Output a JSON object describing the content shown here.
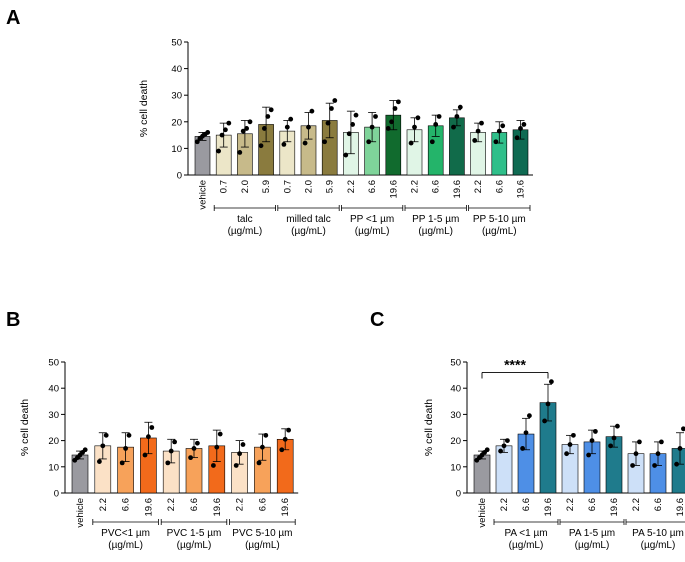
{
  "figure": {
    "panels": [
      "A",
      "B",
      "C"
    ]
  },
  "chart_data": [
    {
      "panel": "A",
      "type": "bar",
      "ylabel": "% cell death",
      "ylim": [
        0,
        50
      ],
      "yticks": [
        0,
        10,
        20,
        30,
        40,
        50
      ],
      "bars": [
        {
          "label": "vehicle",
          "value": 14.5,
          "sd": 1.5,
          "color": "#9a9aa0",
          "points": [
            12.5,
            13.8,
            14.6,
            15.3,
            16.0
          ]
        },
        {
          "label": "0.7",
          "value": 15.0,
          "sd": 4.5,
          "color": "#ece6c8",
          "points": [
            9.0,
            15.0,
            17.0,
            19.5
          ]
        },
        {
          "label": "2.0",
          "value": 15.5,
          "sd": 5.0,
          "color": "#c7ba8a",
          "points": [
            8.5,
            16.5,
            17.5,
            20.0
          ]
        },
        {
          "label": "5.9",
          "value": 19.0,
          "sd": 6.5,
          "color": "#8a7b3e",
          "points": [
            11.0,
            17.5,
            22.0,
            24.5
          ]
        },
        {
          "label": "0.7",
          "value": 16.5,
          "sd": 4.0,
          "color": "#ece6c8",
          "points": [
            11.5,
            18.0,
            21.0
          ]
        },
        {
          "label": "2.0",
          "value": 18.5,
          "sd": 5.0,
          "color": "#c7ba8a",
          "points": [
            12.0,
            18.0,
            24.0
          ]
        },
        {
          "label": "5.9",
          "value": 20.5,
          "sd": 6.5,
          "color": "#8a7b3e",
          "points": [
            12.5,
            19.5,
            25.0,
            28.0
          ]
        },
        {
          "label": "2.2",
          "value": 16.0,
          "sd": 8.0,
          "color": "#e0f5e6",
          "points": [
            7.5,
            15.5,
            19.0,
            22.5
          ]
        },
        {
          "label": "6.6",
          "value": 18.0,
          "sd": 5.5,
          "color": "#7fd49a",
          "points": [
            12.5,
            18.0,
            22.0
          ]
        },
        {
          "label": "19.6",
          "value": 22.5,
          "sd": 5.5,
          "color": "#116b2e",
          "points": [
            17.5,
            20.0,
            25.0,
            27.5
          ]
        },
        {
          "label": "2.2",
          "value": 17.0,
          "sd": 4.5,
          "color": "#e0f5e6",
          "points": [
            12.0,
            18.0,
            21.5
          ]
        },
        {
          "label": "6.6",
          "value": 18.5,
          "sd": 4.0,
          "color": "#24b46a",
          "points": [
            12.5,
            19.0,
            22.0
          ]
        },
        {
          "label": "19.6",
          "value": 21.5,
          "sd": 3.0,
          "color": "#116b4a",
          "points": [
            18.0,
            22.0,
            25.5
          ]
        },
        {
          "label": "2.2",
          "value": 16.0,
          "sd": 3.5,
          "color": "#e0f5e6",
          "points": [
            13.0,
            16.5,
            19.5
          ]
        },
        {
          "label": "6.6",
          "value": 16.0,
          "sd": 4.0,
          "color": "#2fbf8a",
          "points": [
            12.5,
            16.5,
            18.5
          ]
        },
        {
          "label": "19.6",
          "value": 17.0,
          "sd": 3.5,
          "color": "#0f6a52",
          "points": [
            14.0,
            17.5,
            19.0
          ]
        }
      ],
      "groups": [
        {
          "from": 1,
          "to": 3,
          "lines": [
            "talc",
            "(µg/mL)"
          ]
        },
        {
          "from": 4,
          "to": 6,
          "lines": [
            "milled talc",
            "(µg/mL)"
          ]
        },
        {
          "from": 7,
          "to": 9,
          "lines": [
            "PP <1 µm",
            "(µg/mL)"
          ]
        },
        {
          "from": 10,
          "to": 12,
          "lines": [
            "PP 1-5 µm",
            "(µg/mL)"
          ]
        },
        {
          "from": 13,
          "to": 15,
          "lines": [
            "PP 5-10 µm",
            "(µg/mL)"
          ]
        }
      ]
    },
    {
      "panel": "B",
      "type": "bar",
      "ylabel": "% cell death",
      "ylim": [
        0,
        50
      ],
      "yticks": [
        0,
        10,
        20,
        30,
        40,
        50
      ],
      "bars": [
        {
          "label": "vehicle",
          "value": 14.5,
          "sd": 1.5,
          "color": "#9a9aa0",
          "points": [
            12.5,
            13.5,
            14.5,
            15.5,
            16.5
          ]
        },
        {
          "label": "2.2",
          "value": 18.0,
          "sd": 5.0,
          "color": "#fbe1c6",
          "points": [
            12.0,
            18.0,
            22.0
          ]
        },
        {
          "label": "6.6",
          "value": 17.5,
          "sd": 5.5,
          "color": "#f7a25a",
          "points": [
            11.5,
            17.0,
            22.0
          ]
        },
        {
          "label": "19.6",
          "value": 21.0,
          "sd": 6.0,
          "color": "#f26a1b",
          "points": [
            14.5,
            21.5,
            25.0
          ]
        },
        {
          "label": "2.2",
          "value": 16.0,
          "sd": 4.5,
          "color": "#fbe1c6",
          "points": [
            11.5,
            16.0,
            19.5
          ]
        },
        {
          "label": "6.6",
          "value": 17.0,
          "sd": 3.5,
          "color": "#f7a25a",
          "points": [
            13.5,
            17.0,
            19.0
          ]
        },
        {
          "label": "19.6",
          "value": 18.0,
          "sd": 6.0,
          "color": "#f26a1b",
          "points": [
            10.5,
            17.5,
            22.5
          ]
        },
        {
          "label": "2.2",
          "value": 15.5,
          "sd": 4.5,
          "color": "#fbe1c6",
          "points": [
            10.5,
            15.0,
            18.5
          ]
        },
        {
          "label": "6.6",
          "value": 17.5,
          "sd": 5.0,
          "color": "#f7a25a",
          "points": [
            11.5,
            17.5,
            22.0
          ]
        },
        {
          "label": "19.6",
          "value": 20.5,
          "sd": 4.0,
          "color": "#f26a1b",
          "points": [
            16.5,
            20.5,
            24.0
          ]
        }
      ],
      "groups": [
        {
          "from": 1,
          "to": 3,
          "lines": [
            "PVC<1 µm",
            "(µg/mL)"
          ]
        },
        {
          "from": 4,
          "to": 6,
          "lines": [
            "PVC 1-5 µm",
            "(µg/mL)"
          ]
        },
        {
          "from": 7,
          "to": 9,
          "lines": [
            "PVC 5-10 µm",
            "(µg/mL)"
          ]
        }
      ]
    },
    {
      "panel": "C",
      "type": "bar",
      "ylabel": "% cell death",
      "ylim": [
        0,
        50
      ],
      "yticks": [
        0,
        10,
        20,
        30,
        40,
        50
      ],
      "bars": [
        {
          "label": "vehicle",
          "value": 14.5,
          "sd": 1.5,
          "color": "#9a9aa0",
          "points": [
            12.5,
            13.5,
            14.5,
            15.5,
            16.5
          ]
        },
        {
          "label": "2.2",
          "value": 18.0,
          "sd": 2.5,
          "color": "#cde0f8",
          "points": [
            16.0,
            18.0,
            20.0
          ]
        },
        {
          "label": "6.6",
          "value": 22.5,
          "sd": 6.0,
          "color": "#4e8fe6",
          "points": [
            17.0,
            23.0,
            29.5
          ]
        },
        {
          "label": "19.6",
          "value": 34.5,
          "sd": 7.0,
          "color": "#1f7b8c",
          "points": [
            27.5,
            34.0,
            42.5
          ]
        },
        {
          "label": "2.2",
          "value": 18.5,
          "sd": 3.5,
          "color": "#cde0f8",
          "points": [
            15.0,
            18.5,
            22.0
          ]
        },
        {
          "label": "6.6",
          "value": 19.5,
          "sd": 4.5,
          "color": "#4e8fe6",
          "points": [
            14.5,
            20.0,
            23.5
          ]
        },
        {
          "label": "19.6",
          "value": 21.5,
          "sd": 4.0,
          "color": "#1f7b8c",
          "points": [
            18.0,
            21.0,
            25.5
          ]
        },
        {
          "label": "2.2",
          "value": 15.0,
          "sd": 4.5,
          "color": "#cde0f8",
          "points": [
            10.5,
            15.0,
            19.5
          ]
        },
        {
          "label": "6.6",
          "value": 15.0,
          "sd": 4.5,
          "color": "#4e8fe6",
          "points": [
            10.5,
            15.0,
            19.5
          ]
        },
        {
          "label": "19.6",
          "value": 17.0,
          "sd": 6.0,
          "color": "#1f7b8c",
          "points": [
            11.0,
            17.0,
            24.5
          ]
        }
      ],
      "groups": [
        {
          "from": 1,
          "to": 3,
          "lines": [
            "PA <1 µm",
            "(µg/mL)"
          ]
        },
        {
          "from": 4,
          "to": 6,
          "lines": [
            "PA 1-5 µm",
            "(µg/mL)"
          ]
        },
        {
          "from": 7,
          "to": 9,
          "lines": [
            "PA 5-10 µm",
            "(µg/mL)"
          ]
        }
      ],
      "significance": {
        "from": 0,
        "to": 3,
        "label": "****",
        "y": 46
      }
    }
  ]
}
